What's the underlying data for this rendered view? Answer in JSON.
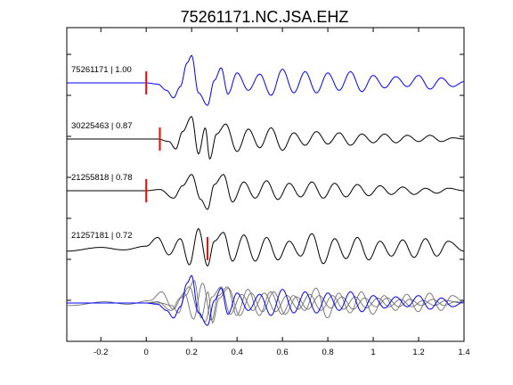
{
  "chart_data": {
    "type": "line",
    "title": "75261171.NC.JSA.EHZ",
    "xlim": [
      -0.35,
      1.4
    ],
    "x_ticks": [
      -0.2,
      0,
      0.2,
      0.4,
      0.6,
      0.8,
      1,
      1.2,
      1.4
    ],
    "x_tick_labels": [
      "-0.2",
      "0",
      "0.2",
      "0.4",
      "0.6",
      "0.8",
      "1",
      "1.2",
      "1.4"
    ],
    "grid": false,
    "colors": {
      "reference": "#0000ff",
      "trace": "#000000",
      "stack": "#707070",
      "pick": "#ff0000"
    },
    "series": [
      {
        "label": "75261171 | 1.00",
        "pick": 0.0,
        "color": "#0000ff",
        "x": [
          -0.35,
          -0.1,
          0.0,
          0.05,
          0.09,
          0.12,
          0.15,
          0.18,
          0.2,
          0.23,
          0.27,
          0.3,
          0.33,
          0.36,
          0.4,
          0.45,
          0.5,
          0.55,
          0.6,
          0.65,
          0.7,
          0.75,
          0.8,
          0.85,
          0.9,
          0.95,
          1.0,
          1.05,
          1.1,
          1.15,
          1.2,
          1.25,
          1.3,
          1.35,
          1.4
        ],
        "y": [
          0,
          0,
          0,
          -0.1,
          -0.6,
          -1.2,
          -0.3,
          1.6,
          2.2,
          -0.8,
          -1.8,
          0.2,
          1.2,
          -0.9,
          0.8,
          -0.6,
          0.7,
          -1.0,
          1.1,
          -0.8,
          0.9,
          -0.8,
          0.8,
          -0.6,
          0.9,
          -0.7,
          0.6,
          -0.4,
          0.5,
          -0.3,
          0.6,
          -0.5,
          0.4,
          -0.3,
          0.1
        ]
      },
      {
        "label": "30225463 | 0.87",
        "pick": 0.06,
        "color": "#000000",
        "x": [
          -0.35,
          0.0,
          0.05,
          0.1,
          0.13,
          0.16,
          0.2,
          0.23,
          0.26,
          0.28,
          0.31,
          0.35,
          0.4,
          0.45,
          0.5,
          0.55,
          0.6,
          0.65,
          0.7,
          0.75,
          0.8,
          0.85,
          0.9,
          0.95,
          1.0,
          1.05,
          1.1,
          1.15,
          1.2,
          1.25,
          1.3,
          1.35,
          1.4
        ],
        "y": [
          0,
          0,
          0,
          -0.2,
          -0.8,
          0.6,
          1.8,
          -1.2,
          0.9,
          -1.6,
          0.4,
          1.2,
          -1.0,
          0.8,
          -0.7,
          0.9,
          -0.9,
          0.5,
          -0.5,
          0.6,
          -0.4,
          0.5,
          -0.5,
          0.4,
          -0.3,
          0.4,
          -0.3,
          0.3,
          -0.2,
          0.3,
          -0.2,
          0.1,
          0.0
        ]
      },
      {
        "label": "21255818 | 0.78",
        "pick": 0.0,
        "color": "#000000",
        "x": [
          -0.35,
          -0.1,
          0.0,
          0.06,
          0.12,
          0.16,
          0.2,
          0.24,
          0.27,
          0.3,
          0.34,
          0.38,
          0.43,
          0.48,
          0.53,
          0.58,
          0.63,
          0.68,
          0.73,
          0.78,
          0.83,
          0.88,
          0.93,
          0.98,
          1.03,
          1.08,
          1.13,
          1.18,
          1.23,
          1.28,
          1.33,
          1.4
        ],
        "y": [
          0,
          0,
          0,
          0.1,
          -0.6,
          0.4,
          1.3,
          -0.7,
          -1.5,
          0.5,
          1.3,
          -0.9,
          0.7,
          -0.6,
          0.8,
          -0.7,
          0.6,
          -0.5,
          0.7,
          -0.6,
          0.6,
          -0.5,
          0.5,
          -0.4,
          0.4,
          -0.3,
          0.3,
          -0.3,
          0.2,
          -0.2,
          0.2,
          0.0
        ]
      },
      {
        "label": "21257181 | 0.72",
        "pick": 0.27,
        "color": "#000000",
        "x": [
          -0.35,
          -0.2,
          -0.1,
          0.0,
          0.05,
          0.1,
          0.15,
          0.19,
          0.23,
          0.27,
          0.3,
          0.34,
          0.38,
          0.43,
          0.48,
          0.53,
          0.58,
          0.63,
          0.68,
          0.73,
          0.78,
          0.83,
          0.88,
          0.93,
          0.98,
          1.03,
          1.08,
          1.13,
          1.18,
          1.23,
          1.28,
          1.33,
          1.4
        ],
        "y": [
          -0.2,
          0.1,
          -0.1,
          0.2,
          0.9,
          -0.5,
          0.8,
          -1.3,
          1.6,
          -1.4,
          0.6,
          1.3,
          -1.0,
          1.1,
          -1.0,
          0.9,
          -0.9,
          0.6,
          -0.6,
          1.2,
          -1.2,
          0.8,
          -0.8,
          0.9,
          -0.9,
          0.6,
          -0.6,
          0.7,
          -0.7,
          0.8,
          -0.6,
          0.6,
          -0.2
        ]
      }
    ]
  }
}
